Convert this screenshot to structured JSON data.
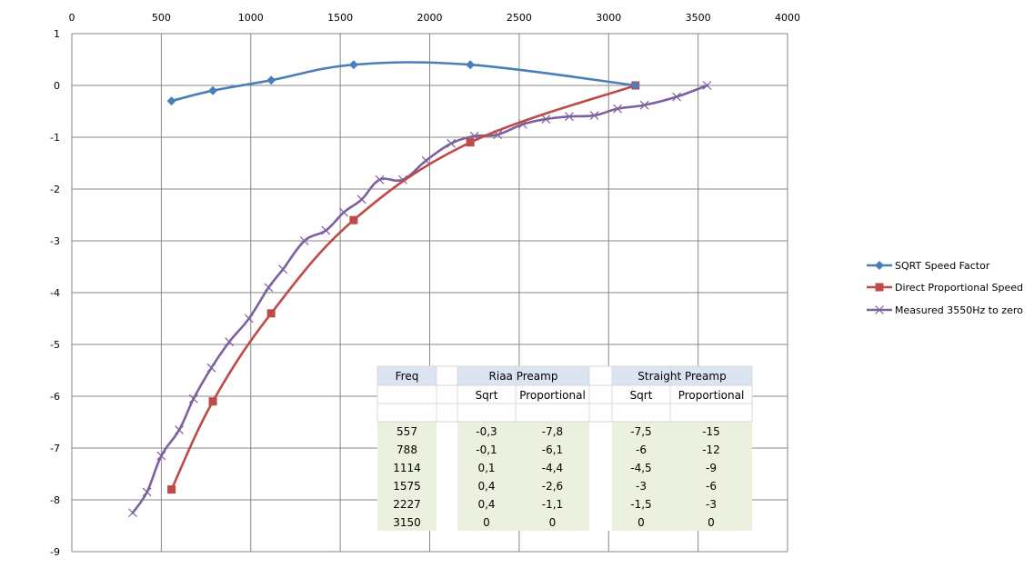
{
  "chart_data": {
    "type": "line",
    "title": "",
    "xlabel": "",
    "ylabel": "",
    "xlim": [
      0,
      4000
    ],
    "ylim": [
      -9,
      1
    ],
    "x_ticks": [
      "0",
      "500",
      "1000",
      "1500",
      "2000",
      "2500",
      "3000",
      "3500",
      "4000"
    ],
    "y_ticks": [
      "1",
      "0",
      "-1",
      "-2",
      "-3",
      "-4",
      "-5",
      "-6",
      "-7",
      "-8",
      "-9"
    ],
    "x_axis_position": "top",
    "grid": true,
    "legend_position": "right",
    "series": [
      {
        "name": "SQRT Speed Factor",
        "color": "#4a7ebb",
        "marker": "diamond",
        "x": [
          557,
          788,
          1114,
          1575,
          2227,
          3150
        ],
        "y": [
          -0.3,
          -0.1,
          0.1,
          0.4,
          0.4,
          0
        ]
      },
      {
        "name": "Direct Proportional Speed",
        "color": "#be4b48",
        "marker": "square",
        "x": [
          557,
          788,
          1114,
          1575,
          2227,
          3150
        ],
        "y": [
          -7.8,
          -6.1,
          -4.4,
          -2.6,
          -1.1,
          0
        ]
      },
      {
        "name": "Measured 3550Hz to zero",
        "color": "#7d60a0",
        "marker": "x",
        "x": [
          340,
          420,
          500,
          600,
          680,
          780,
          880,
          990,
          1100,
          1180,
          1300,
          1420,
          1520,
          1620,
          1720,
          1850,
          1980,
          2120,
          2250,
          2380,
          2520,
          2650,
          2780,
          2920,
          3050,
          3200,
          3380,
          3550
        ],
        "y": [
          -8.25,
          -7.85,
          -7.15,
          -6.65,
          -6.05,
          -5.45,
          -4.95,
          -4.5,
          -3.9,
          -3.55,
          -3.0,
          -2.8,
          -2.45,
          -2.2,
          -1.82,
          -1.82,
          -1.45,
          -1.12,
          -0.98,
          -0.95,
          -0.75,
          -0.65,
          -0.6,
          -0.58,
          -0.45,
          -0.38,
          -0.22,
          0
        ]
      }
    ],
    "table": {
      "headers": [
        "Freq",
        "",
        "Riaa  Preamp",
        "",
        "Straight  Preamp",
        ""
      ],
      "subheaders": [
        "",
        "",
        "Sqrt",
        "Proportional",
        "Sqrt",
        "Proportional"
      ],
      "rows": [
        [
          "557",
          "-0,3",
          "-7,8",
          "-7,5",
          "-15"
        ],
        [
          "788",
          "-0,1",
          "-6,1",
          "-6",
          "-12"
        ],
        [
          "1114",
          "0,1",
          "-4,4",
          "-4,5",
          "-9"
        ],
        [
          "1575",
          "0,4",
          "-2,6",
          "-3",
          "-6"
        ],
        [
          "2227",
          "0,4",
          "-1,1",
          "-1,5",
          "-3"
        ],
        [
          "3150",
          "0",
          "0",
          "0",
          "0"
        ]
      ]
    }
  },
  "colors": {
    "grid": "#878787",
    "table_header_bg": "#dbe5f1",
    "table_body_bg": "#ebf1de",
    "table_border": "#d9d9d9"
  }
}
